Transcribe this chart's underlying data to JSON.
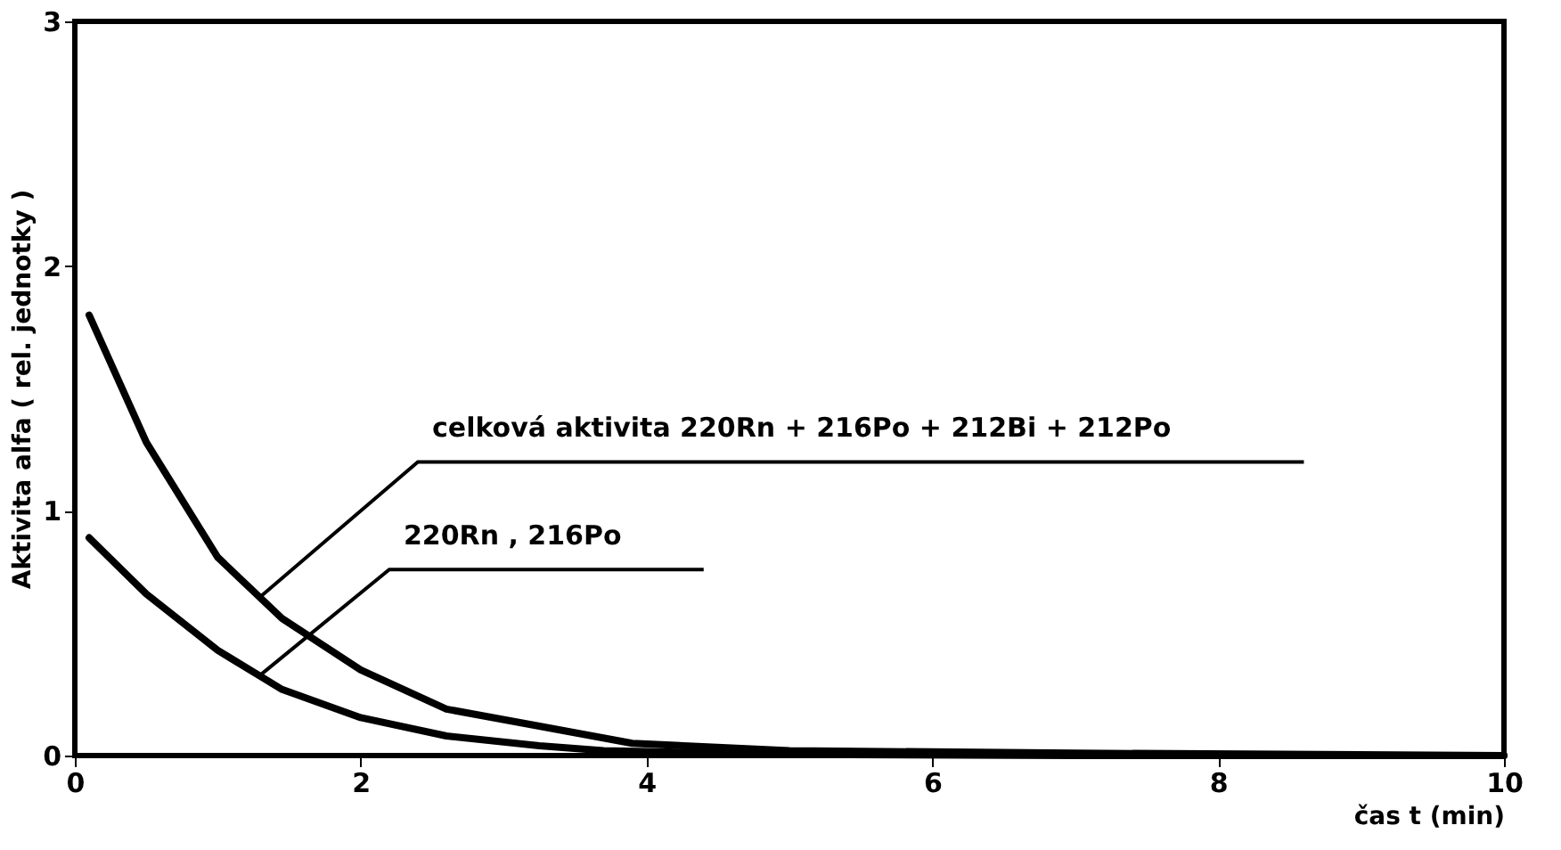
{
  "chart_data": {
    "type": "line",
    "xlabel": "čas  t (min)",
    "ylabel": "Aktivita alfa ( rel. jednotky )",
    "xlim": [
      0,
      10
    ],
    "ylim": [
      0,
      3
    ],
    "xticks": [
      0,
      2,
      4,
      6,
      8,
      10
    ],
    "yticks": [
      0,
      1,
      2,
      3
    ],
    "grid": false,
    "marker": "none",
    "line_style": "solid",
    "series": [
      {
        "color": "#000000",
        "x": [
          0.1,
          0.5,
          1.0,
          1.45,
          2.0,
          2.6,
          3.25,
          3.9,
          5,
          7,
          10
        ],
        "values": [
          1.8,
          1.28,
          0.81,
          0.56,
          0.35,
          0.19,
          0.12,
          0.05,
          0.02,
          0.01,
          0
        ]
      },
      {
        "color": "#000000",
        "x": [
          0.1,
          0.5,
          1.0,
          1.45,
          2.0,
          2.6,
          3.25,
          3.7,
          5,
          7,
          10
        ],
        "values": [
          0.89,
          0.66,
          0.43,
          0.27,
          0.155,
          0.08,
          0.04,
          0.02,
          0.005,
          0,
          0
        ]
      }
    ],
    "annotations": [
      {
        "text": "celková aktivita 220Rn + 216Po + 212Bi + 212Po",
        "x": 1.3,
        "y": 0.65
      },
      {
        "text": "220Rn , 216Po",
        "x": 1.3,
        "y": 0.33
      }
    ]
  }
}
